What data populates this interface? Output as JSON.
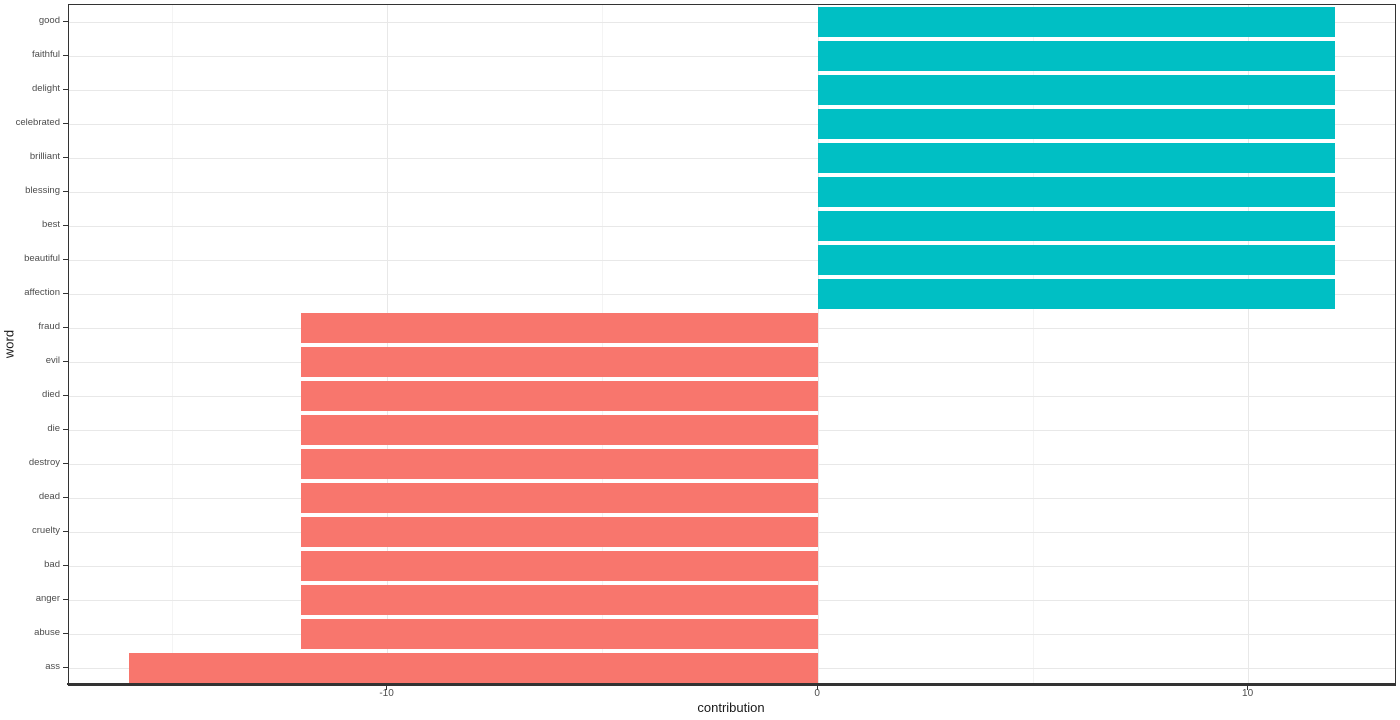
{
  "chart_data": {
    "type": "bar",
    "orientation": "horizontal",
    "title": "",
    "xlabel": "contribution",
    "ylabel": "word",
    "xlim": [
      -17.4,
      13.4
    ],
    "grid": true,
    "legend": "none",
    "x_ticks": [
      {
        "value": -10,
        "label": "-10"
      },
      {
        "value": 0,
        "label": "0"
      },
      {
        "value": 10,
        "label": "10"
      }
    ],
    "x_minor_gridlines": [
      -15,
      -5,
      5
    ],
    "colors": {
      "positive": "#00BFC4",
      "negative": "#F8766D"
    },
    "items": [
      {
        "word": "good",
        "value": 12,
        "sentiment": "positive"
      },
      {
        "word": "faithful",
        "value": 12,
        "sentiment": "positive"
      },
      {
        "word": "delight",
        "value": 12,
        "sentiment": "positive"
      },
      {
        "word": "celebrated",
        "value": 12,
        "sentiment": "positive"
      },
      {
        "word": "brilliant",
        "value": 12,
        "sentiment": "positive"
      },
      {
        "word": "blessing",
        "value": 12,
        "sentiment": "positive"
      },
      {
        "word": "best",
        "value": 12,
        "sentiment": "positive"
      },
      {
        "word": "beautiful",
        "value": 12,
        "sentiment": "positive"
      },
      {
        "word": "affection",
        "value": 12,
        "sentiment": "positive"
      },
      {
        "word": "fraud",
        "value": -12,
        "sentiment": "negative"
      },
      {
        "word": "evil",
        "value": -12,
        "sentiment": "negative"
      },
      {
        "word": "died",
        "value": -12,
        "sentiment": "negative"
      },
      {
        "word": "die",
        "value": -12,
        "sentiment": "negative"
      },
      {
        "word": "destroy",
        "value": -12,
        "sentiment": "negative"
      },
      {
        "word": "dead",
        "value": -12,
        "sentiment": "negative"
      },
      {
        "word": "cruelty",
        "value": -12,
        "sentiment": "negative"
      },
      {
        "word": "bad",
        "value": -12,
        "sentiment": "negative"
      },
      {
        "word": "anger",
        "value": -12,
        "sentiment": "negative"
      },
      {
        "word": "abuse",
        "value": -12,
        "sentiment": "negative"
      },
      {
        "word": "ass",
        "value": -16,
        "sentiment": "negative"
      }
    ]
  },
  "style": {
    "background": "#ffffff",
    "panel_border": "#333333",
    "grid_major": "#e8e8e8",
    "grid_minor": "#f4f4f4",
    "tick_color": "#333333",
    "tick_label_color": "#4d4d4d",
    "axis_title_color": "#1a1a1a"
  }
}
